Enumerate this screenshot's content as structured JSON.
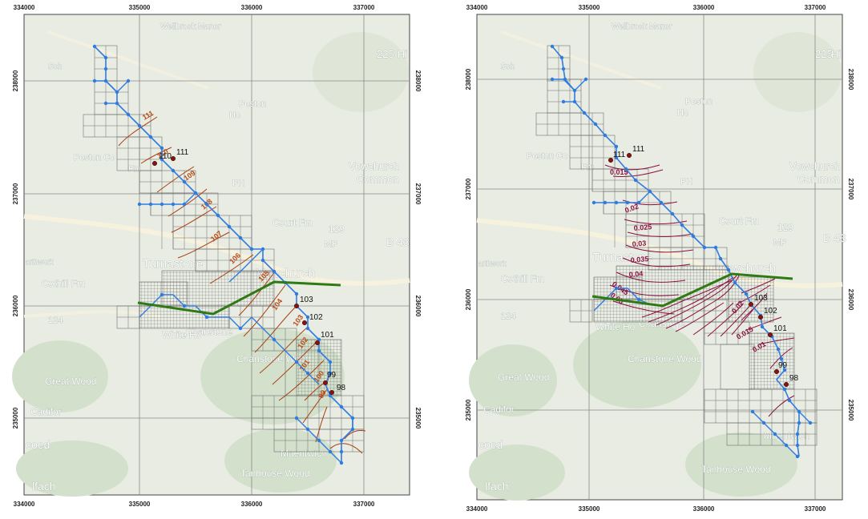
{
  "colors": {
    "channel": "#2f7be0",
    "channel_node": "#2f7be0",
    "levee": "#2f7a14",
    "grid": "#777777",
    "contour_a": "#a83e10",
    "contour_b": "#8b1040",
    "basemap": "#e9ede4",
    "wood": "#d6e4cf",
    "point": "#8b1010"
  },
  "map_labels": [
    "Wellbrook Manor",
    "Sch",
    "Poston",
    "Ho",
    "Poston Co",
    "Fm",
    "PH",
    "Court Fm",
    "Vowchurch",
    "Common",
    "Turnastone",
    "Vowchurch",
    "Cothill Fm",
    "arthwork",
    "Chanstone",
    "White Ho",
    "Chanstone Wood",
    "Great Wood",
    "Cadifor",
    "coed",
    "lfach",
    "Maentwich",
    "Tanhouse Wood",
    "MP",
    "129",
    "124",
    "225",
    "B 43",
    "Hi"
  ],
  "panels": [
    {
      "x_ticks_top": [
        "334000",
        "335000",
        "336000",
        "337000"
      ],
      "x_ticks_bottom": [
        "334000",
        "335000",
        "336000",
        "337000"
      ],
      "y_ticks_left": [
        "238000",
        "237000",
        "236000",
        "235000"
      ],
      "y_ticks_right": [
        "238000",
        "237000",
        "236000",
        "235000"
      ],
      "point_labels": [
        "111",
        "110",
        "103",
        "102",
        "101",
        "99",
        "98"
      ],
      "contour_labels": [
        "111",
        "110",
        "109",
        "108",
        "107",
        "106",
        "105",
        "104",
        "103",
        "102",
        "101",
        "100",
        "99"
      ]
    },
    {
      "x_ticks_top": [
        "334000",
        "335000",
        "336000",
        "337000"
      ],
      "x_ticks_bottom": [
        "334000",
        "335000",
        "336000",
        "337000"
      ],
      "y_ticks_left": [
        "238000",
        "237000",
        "236000",
        "235000"
      ],
      "y_ticks_right": [
        "238000",
        "237000",
        "236000",
        "235000"
      ],
      "point_labels": [
        "111",
        "111",
        "103",
        "102",
        "101",
        "99",
        "98"
      ],
      "contour_labels": [
        "0.015",
        "0.02",
        "0.025",
        "0.03",
        "0.035",
        "0.04",
        "0.045",
        "0.05",
        "0.02",
        "0.015",
        "0.01"
      ]
    }
  ]
}
